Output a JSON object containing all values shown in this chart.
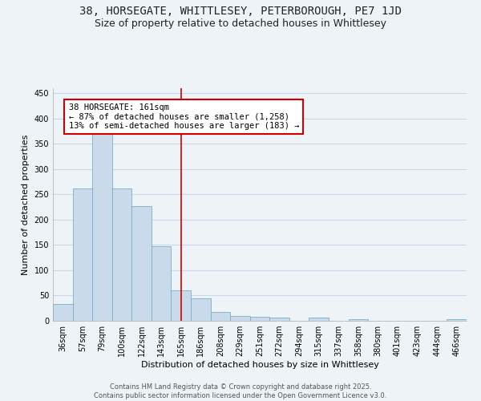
{
  "title": "38, HORSEGATE, WHITTLESEY, PETERBOROUGH, PE7 1JD",
  "subtitle": "Size of property relative to detached houses in Whittlesey",
  "xlabel": "Distribution of detached houses by size in Whittlesey",
  "ylabel": "Number of detached properties",
  "categories": [
    "36sqm",
    "57sqm",
    "79sqm",
    "100sqm",
    "122sqm",
    "143sqm",
    "165sqm",
    "186sqm",
    "208sqm",
    "229sqm",
    "251sqm",
    "272sqm",
    "294sqm",
    "315sqm",
    "337sqm",
    "358sqm",
    "380sqm",
    "401sqm",
    "423sqm",
    "444sqm",
    "466sqm"
  ],
  "values": [
    33,
    262,
    370,
    262,
    227,
    148,
    60,
    45,
    18,
    10,
    8,
    6,
    0,
    6,
    0,
    3,
    0,
    0,
    0,
    0,
    3
  ],
  "bar_color": "#c9daea",
  "bar_edge_color": "#7aafc8",
  "grid_color": "#c8d8e8",
  "background_color": "#eef3f8",
  "vline_x": 6.0,
  "vline_color": "#cc0000",
  "annotation_text": "38 HORSEGATE: 161sqm\n← 87% of detached houses are smaller (1,258)\n13% of semi-detached houses are larger (183) →",
  "annotation_box_color": "#ffffff",
  "annotation_box_edge": "#cc0000",
  "ylim": [
    0,
    460
  ],
  "yticks": [
    0,
    50,
    100,
    150,
    200,
    250,
    300,
    350,
    400,
    450
  ],
  "footer": "Contains HM Land Registry data © Crown copyright and database right 2025.\nContains public sector information licensed under the Open Government Licence v3.0.",
  "title_fontsize": 10,
  "subtitle_fontsize": 9,
  "axis_label_fontsize": 8,
  "tick_fontsize": 7,
  "annotation_fontsize": 7.5
}
